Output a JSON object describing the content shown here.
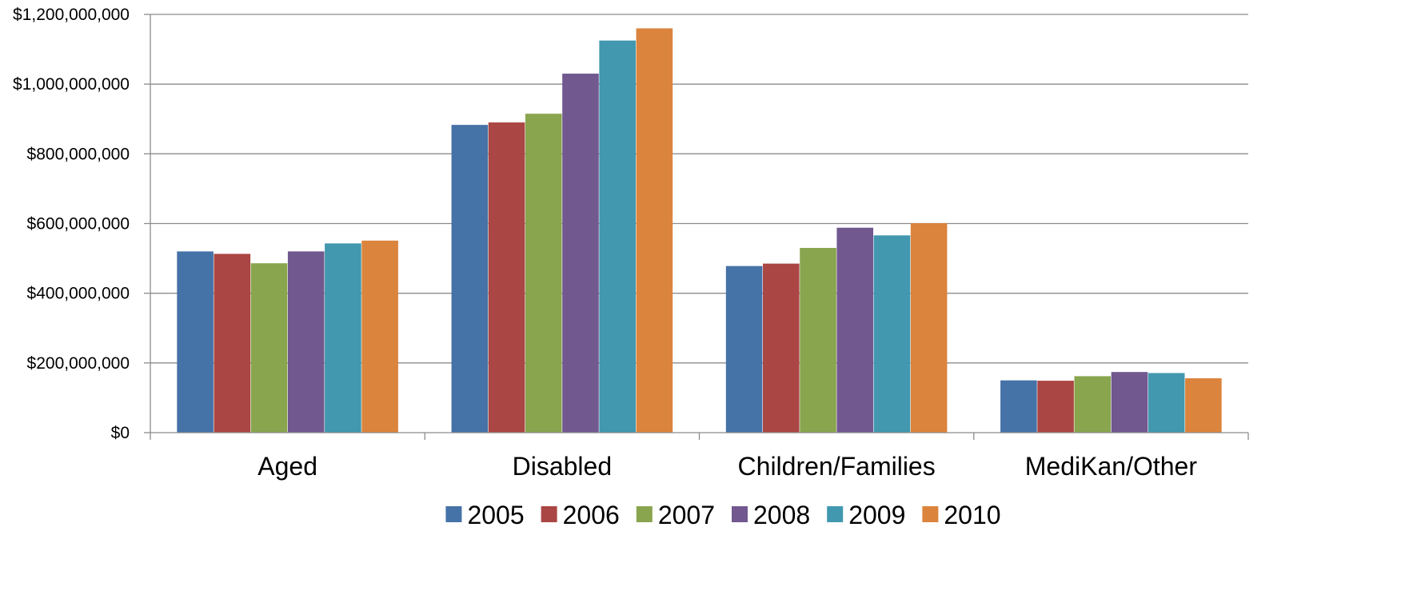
{
  "chart_data": {
    "type": "bar",
    "title": "",
    "xlabel": "",
    "ylabel": "",
    "categories": [
      "Aged",
      "Disabled",
      "Children/Families",
      "MediKan/Other"
    ],
    "series": [
      {
        "name": "2005",
        "color": "#4572A7",
        "values": [
          520000000,
          883000000,
          478000000,
          150000000
        ]
      },
      {
        "name": "2006",
        "color": "#AA4643",
        "values": [
          513000000,
          890000000,
          485000000,
          149000000
        ]
      },
      {
        "name": "2007",
        "color": "#89A54E",
        "values": [
          486000000,
          915000000,
          530000000,
          162000000
        ]
      },
      {
        "name": "2008",
        "color": "#71588F",
        "values": [
          520000000,
          1030000000,
          588000000,
          174000000
        ]
      },
      {
        "name": "2009",
        "color": "#4198AF",
        "values": [
          543000000,
          1125000000,
          566000000,
          171000000
        ]
      },
      {
        "name": "2010",
        "color": "#DB843D",
        "values": [
          551000000,
          1160000000,
          601000000,
          156000000
        ]
      }
    ],
    "ylim": [
      0,
      1200000000
    ],
    "yticks": [
      0,
      200000000,
      400000000,
      600000000,
      800000000,
      1000000000,
      1200000000
    ],
    "ytick_labels": [
      "$0",
      "$200,000,000",
      "$400,000,000",
      "$600,000,000",
      "$800,000,000",
      "$1,000,000,000",
      "$1,200,000,000"
    ],
    "grid": "horizontal",
    "legend": "bottom"
  }
}
